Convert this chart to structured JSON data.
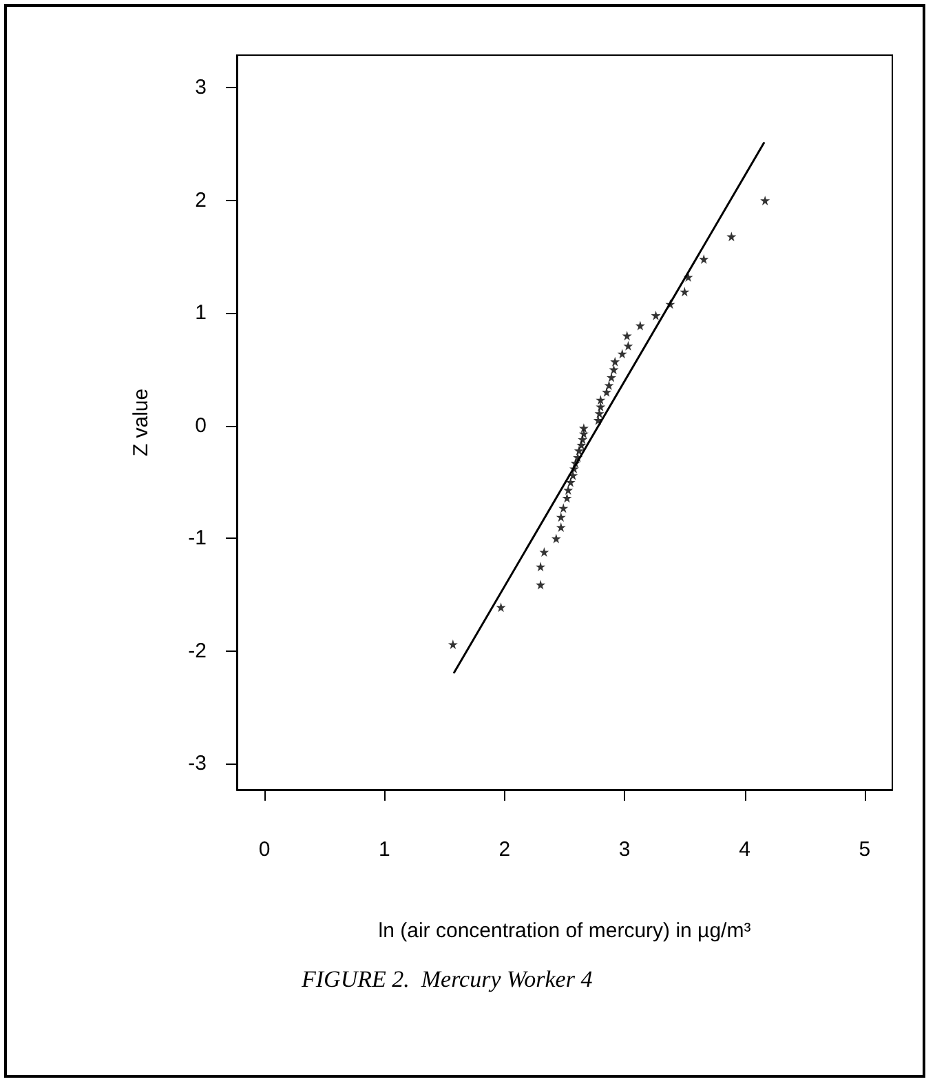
{
  "chart_data": {
    "type": "scatter",
    "xlabel": "ln (air concentration of mercury) in µg/m³",
    "ylabel": "Z value",
    "annotations": [
      "FIGURE 2.  Mercury Worker 4"
    ],
    "xlim": [
      -0.23,
      5.23
    ],
    "xticks": [
      0,
      1,
      2,
      3,
      4,
      5
    ],
    "ylim": [
      -3.23,
      3.29
    ],
    "yticks": [
      -3,
      -2,
      -1,
      0,
      1,
      2,
      3
    ],
    "grid": false,
    "series": [
      {
        "marker": "star",
        "color": "#000000",
        "x": [
          1.57,
          1.97,
          2.3,
          2.3,
          2.33,
          2.43,
          2.47,
          2.47,
          2.49,
          2.52,
          2.53,
          2.55,
          2.57,
          2.58,
          2.59,
          2.61,
          2.62,
          2.64,
          2.65,
          2.66,
          2.66,
          2.78,
          2.79,
          2.8,
          2.8,
          2.85,
          2.87,
          2.89,
          2.91,
          2.92,
          2.98,
          3.03,
          3.02,
          3.13,
          3.26,
          3.38,
          3.5,
          3.53,
          3.66,
          3.89,
          4.17
        ],
        "values": [
          -1.94,
          -1.61,
          -1.41,
          -1.25,
          -1.12,
          -1.0,
          -0.9,
          -0.81,
          -0.73,
          -0.64,
          -0.57,
          -0.5,
          -0.44,
          -0.38,
          -0.33,
          -0.28,
          -0.22,
          -0.17,
          -0.12,
          -0.07,
          -0.02,
          0.05,
          0.11,
          0.17,
          0.23,
          0.3,
          0.36,
          0.43,
          0.5,
          0.57,
          0.64,
          0.71,
          0.8,
          0.89,
          0.98,
          1.08,
          1.19,
          1.32,
          1.48,
          1.68,
          2.0
        ]
      },
      {
        "type": "line",
        "marker": "none",
        "line_style": "solid",
        "color": "#000000",
        "x": [
          1.58,
          4.16
        ],
        "values": [
          -2.19,
          2.51
        ]
      }
    ]
  }
}
